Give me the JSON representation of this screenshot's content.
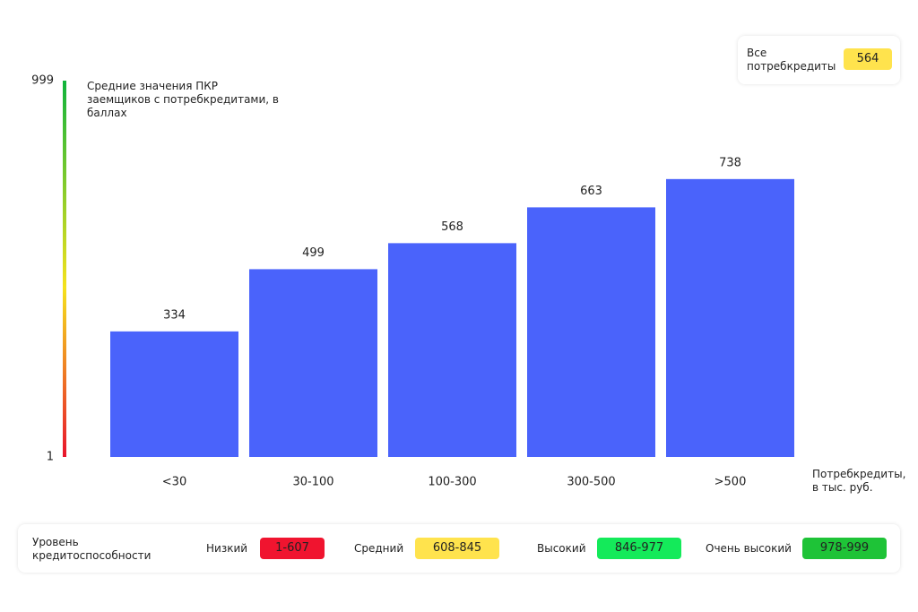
{
  "chart_data": {
    "type": "bar",
    "y_label": "Средние значения ПКР заемщиков с потребкредитами, в баллах",
    "x_label": "Потребкредиты, в тыс. руб.",
    "categories": [
      "<30",
      "30-100",
      "100-300",
      "300-500",
      ">500"
    ],
    "values": [
      334,
      499,
      568,
      663,
      738
    ],
    "color": "#4a63fb",
    "ylim": [
      1,
      999
    ],
    "yticks": [
      1,
      999
    ],
    "summary": {
      "label": "Все потребкредиты",
      "value": 564,
      "color": "#ffe34d"
    },
    "legend": {
      "title": "Уровень кредитоспособности",
      "levels": [
        {
          "name": "Низкий",
          "range": "1-607",
          "color": "#f0142f"
        },
        {
          "name": "Средний",
          "range": "608-845",
          "color": "#ffe34d"
        },
        {
          "name": "Высокий",
          "range": "846-977",
          "color": "#14ea5a"
        },
        {
          "name": "Очень высокий",
          "range": "978-999",
          "color": "#1ec337"
        }
      ]
    }
  }
}
